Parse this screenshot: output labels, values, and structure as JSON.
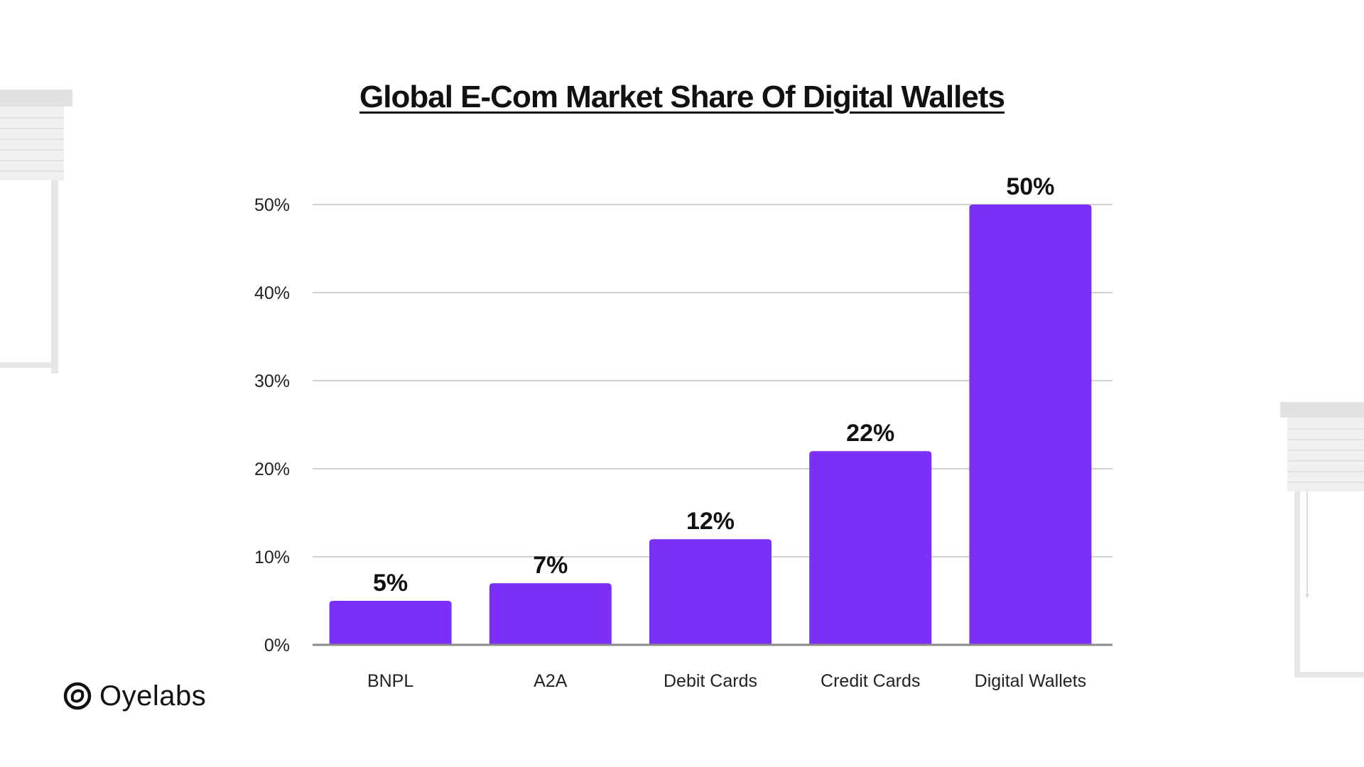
{
  "colors": {
    "bar": "#7b2ff7",
    "gridline": "#d0d0d0",
    "axis": "#8a8a8a",
    "text": "#111111",
    "decoration": "#e4e4e4"
  },
  "brand": {
    "name": "Oyelabs",
    "icon": "oyelabs-logo-icon"
  },
  "chart_data": {
    "type": "bar",
    "title": "Global  E-Com Market Share Of Digital Wallets",
    "xlabel": "",
    "ylabel": "",
    "categories": [
      "BNPL",
      "A2A",
      "Debit Cards",
      "Credit Cards",
      "Digital Wallets"
    ],
    "values": [
      5,
      7,
      12,
      22,
      50
    ],
    "data_labels": [
      "5%",
      "7%",
      "12%",
      "22%",
      "50%"
    ],
    "ylim": [
      0,
      50
    ],
    "yticks": [
      0,
      10,
      20,
      30,
      40,
      50
    ],
    "ytick_labels": [
      "0%",
      "10%",
      "20%",
      "30%",
      "40%",
      "50%"
    ],
    "grid": true,
    "legend": "none"
  }
}
